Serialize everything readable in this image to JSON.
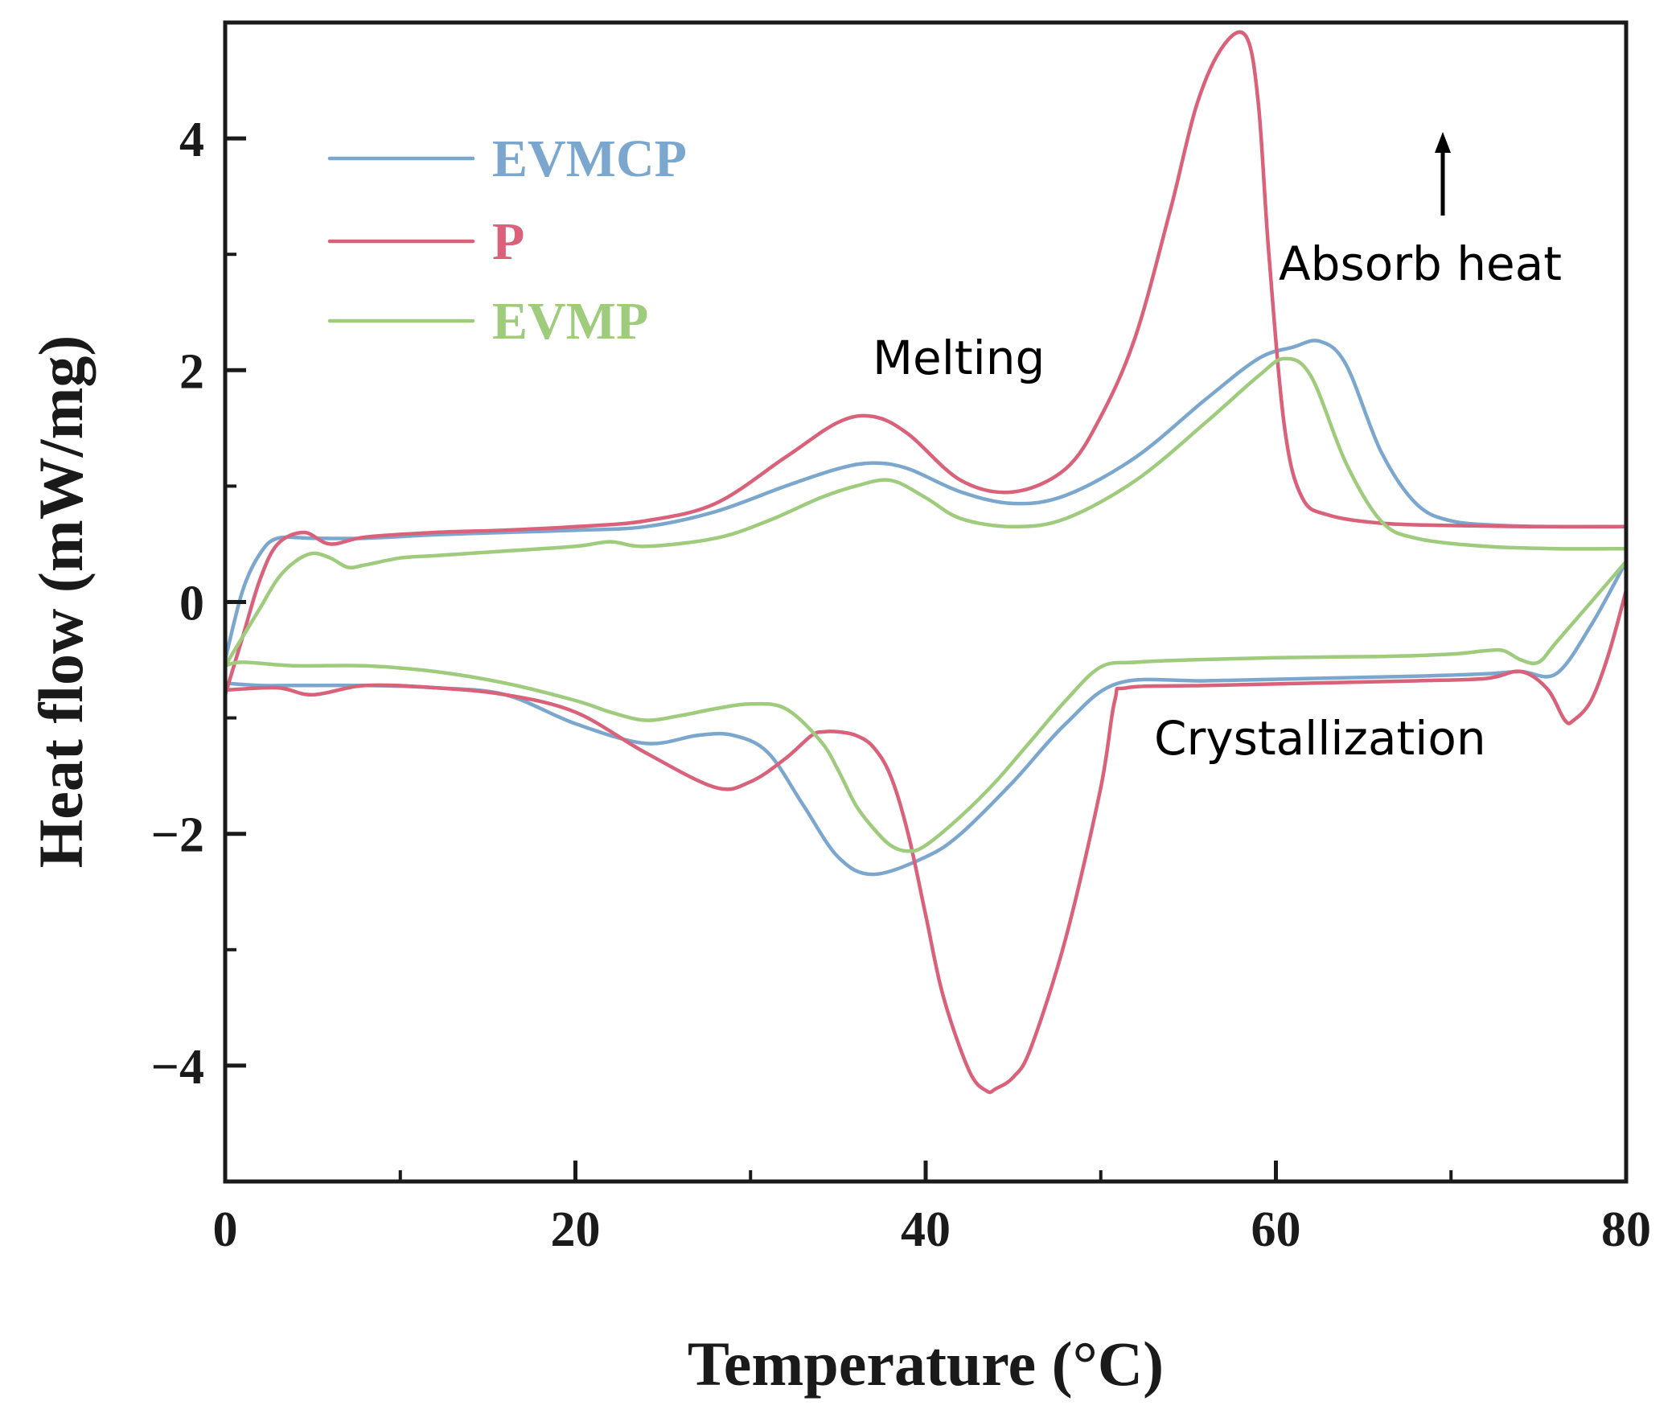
{
  "chart_data": {
    "type": "line",
    "title": "",
    "xlabel": "Temperature (°C)",
    "ylabel": "Heat flow (mW/mg)",
    "xlim": [
      0,
      80
    ],
    "ylim": [
      -5,
      5
    ],
    "x_ticks": [
      0,
      20,
      40,
      60,
      80
    ],
    "x_tick_labels": [
      "0",
      "20",
      "40",
      "60",
      "80"
    ],
    "y_ticks": [
      -4,
      -2,
      0,
      2,
      4
    ],
    "y_tick_labels": [
      "−4",
      "−2",
      "0",
      "2",
      "4"
    ],
    "x_minor_ticks": [
      10,
      30,
      50,
      70
    ],
    "y_minor_ticks": [
      -3,
      -1,
      1,
      3
    ],
    "grid": false,
    "legend_position": "top-left",
    "annotations": {
      "melting": "Melting",
      "crystallization": "Crystallization",
      "absorb_heat": "Absorb heat"
    },
    "series": [
      {
        "name": "EVMCP",
        "color": "#7ba7cf",
        "heating": {
          "x": [
            0,
            1,
            2,
            3,
            5,
            8,
            12,
            16,
            20,
            24,
            28,
            32,
            35,
            37,
            39,
            42,
            45,
            48,
            52,
            56,
            59,
            61,
            62.5,
            64,
            66,
            68,
            70,
            73,
            76,
            80
          ],
          "y": [
            -0.5,
            0.1,
            0.42,
            0.55,
            0.55,
            0.55,
            0.58,
            0.6,
            0.62,
            0.65,
            0.78,
            1.0,
            1.15,
            1.2,
            1.15,
            0.95,
            0.85,
            0.92,
            1.25,
            1.75,
            2.1,
            2.2,
            2.25,
            2.05,
            1.3,
            0.85,
            0.7,
            0.66,
            0.65,
            0.65
          ]
        },
        "cooling": {
          "x": [
            80,
            78,
            76,
            74,
            72,
            68,
            62,
            56,
            51,
            48,
            45,
            42,
            40,
            37,
            35,
            33,
            31,
            29,
            27,
            24,
            20,
            16,
            12,
            8,
            4,
            2,
            0
          ],
          "y": [
            0.35,
            -0.2,
            -0.62,
            -0.6,
            -0.62,
            -0.64,
            -0.66,
            -0.68,
            -0.7,
            -1.05,
            -1.55,
            -2.0,
            -2.2,
            -2.35,
            -2.2,
            -1.75,
            -1.3,
            -1.15,
            -1.15,
            -1.22,
            -1.05,
            -0.8,
            -0.74,
            -0.72,
            -0.72,
            -0.72,
            -0.7
          ]
        }
      },
      {
        "name": "P",
        "color": "#d9617a",
        "heating": {
          "x": [
            0,
            1,
            2,
            3,
            4.5,
            6,
            8,
            12,
            16,
            20,
            24,
            28,
            32,
            35,
            37,
            39,
            42,
            45,
            48,
            50,
            52,
            54,
            55.5,
            57,
            58.3,
            59,
            59.6,
            60.5,
            61.5,
            63,
            66,
            70,
            75,
            80
          ],
          "y": [
            -0.8,
            -0.3,
            0.2,
            0.5,
            0.6,
            0.5,
            0.56,
            0.6,
            0.62,
            0.65,
            0.7,
            0.85,
            1.25,
            1.55,
            1.6,
            1.45,
            1.05,
            0.95,
            1.15,
            1.6,
            2.3,
            3.4,
            4.3,
            4.8,
            4.88,
            4.3,
            3.0,
            1.5,
            0.9,
            0.75,
            0.68,
            0.66,
            0.65,
            0.65
          ]
        },
        "cooling": {
          "x": [
            80,
            79,
            78,
            77,
            76.5,
            75.5,
            74,
            72,
            68,
            62,
            56,
            51.5,
            50.8,
            50,
            48,
            46,
            45,
            44,
            43.5,
            42.5,
            41,
            40,
            39,
            38,
            37,
            36,
            35,
            34.2,
            33.5,
            32,
            30,
            28,
            24,
            20,
            16,
            12,
            8,
            5,
            3,
            0
          ],
          "y": [
            0.1,
            -0.45,
            -0.85,
            -1.02,
            -1.02,
            -0.75,
            -0.6,
            -0.66,
            -0.68,
            -0.7,
            -0.72,
            -0.74,
            -0.85,
            -1.6,
            -2.9,
            -3.85,
            -4.1,
            -4.2,
            -4.22,
            -4.05,
            -3.4,
            -2.7,
            -2.0,
            -1.5,
            -1.25,
            -1.15,
            -1.12,
            -1.12,
            -1.15,
            -1.35,
            -1.55,
            -1.6,
            -1.3,
            -0.95,
            -0.8,
            -0.74,
            -0.72,
            -0.8,
            -0.74,
            -0.76
          ]
        }
      },
      {
        "name": "EVMP",
        "color": "#9fcb7d",
        "heating": {
          "x": [
            0,
            1,
            2,
            3,
            4,
            5,
            6,
            7,
            8,
            10,
            12,
            16,
            20,
            22,
            24,
            28,
            31,
            34,
            36,
            38,
            40,
            42,
            45,
            48,
            52,
            56,
            59,
            60.5,
            62,
            64,
            66,
            68,
            72,
            76,
            80
          ],
          "y": [
            -0.55,
            -0.3,
            -0.05,
            0.2,
            0.35,
            0.42,
            0.38,
            0.3,
            0.32,
            0.38,
            0.4,
            0.44,
            0.48,
            0.52,
            0.48,
            0.55,
            0.7,
            0.9,
            1.0,
            1.05,
            0.9,
            0.72,
            0.65,
            0.72,
            1.05,
            1.55,
            1.95,
            2.1,
            1.95,
            1.2,
            0.7,
            0.55,
            0.48,
            0.46,
            0.46
          ]
        },
        "cooling": {
          "x": [
            80,
            78,
            76,
            75,
            74,
            73,
            72,
            70,
            66,
            60,
            55,
            52,
            50,
            48,
            46,
            44,
            42,
            40,
            39,
            38,
            37,
            36,
            35,
            34,
            32,
            30,
            28,
            26,
            24,
            22,
            20,
            16,
            12,
            8,
            4,
            1,
            0
          ],
          "y": [
            0.35,
            0.0,
            -0.35,
            -0.52,
            -0.5,
            -0.42,
            -0.42,
            -0.45,
            -0.47,
            -0.48,
            -0.5,
            -0.52,
            -0.56,
            -0.85,
            -1.2,
            -1.55,
            -1.85,
            -2.1,
            -2.15,
            -2.1,
            -1.95,
            -1.75,
            -1.45,
            -1.2,
            -0.92,
            -0.88,
            -0.92,
            -0.98,
            -1.02,
            -0.95,
            -0.85,
            -0.7,
            -0.6,
            -0.55,
            -0.55,
            -0.52,
            -0.55
          ]
        }
      }
    ]
  }
}
